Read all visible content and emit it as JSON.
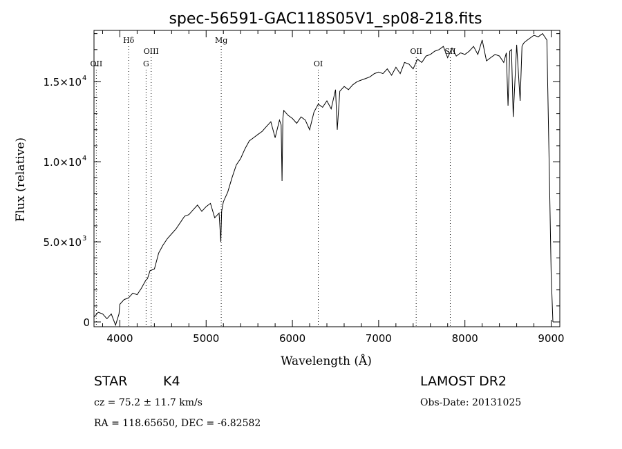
{
  "chart_data": {
    "type": "line",
    "title": "spec-56591-GAC118S05V1_sp08-218.fits",
    "xlabel": "Wavelength (Å)",
    "ylabel": "Flux (relative)",
    "xlim": [
      3700,
      9100
    ],
    "ylim": [
      -300,
      18200
    ],
    "xticks": [
      4000,
      5000,
      6000,
      7000,
      8000,
      9000
    ],
    "xtick_labels": [
      "4000",
      "5000",
      "6000",
      "7000",
      "8000",
      "9000"
    ],
    "yticks": [
      0,
      5000,
      10000,
      15000
    ],
    "ytick_labels": [
      {
        "mant": "0",
        "exp": ""
      },
      {
        "mant": "5.0×10",
        "exp": "3"
      },
      {
        "mant": "1.0×10",
        "exp": "4"
      },
      {
        "mant": "1.5×10",
        "exp": "4"
      }
    ],
    "grid": false,
    "line_markers": [
      {
        "label": "OII",
        "wavelength": 3727,
        "row": 3
      },
      {
        "label": "Hδ",
        "wavelength": 4102,
        "row": 1
      },
      {
        "label": "G",
        "wavelength": 4304,
        "row": 3
      },
      {
        "label": "OIII",
        "wavelength": 4363,
        "row": 2
      },
      {
        "label": "Mg",
        "wavelength": 5175,
        "row": 1
      },
      {
        "label": "OI",
        "wavelength": 6300,
        "row": 3
      },
      {
        "label": "OII",
        "wavelength": 7435,
        "row": 2
      },
      {
        "label": "SII",
        "wavelength": 7830,
        "row": 2
      }
    ],
    "series": [
      {
        "x": [
          3700,
          3750,
          3800,
          3850,
          3900,
          3950,
          3990,
          4000,
          4050,
          4100,
          4150,
          4200,
          4250,
          4300,
          4320,
          4350,
          4400,
          4450,
          4500,
          4550,
          4600,
          4650,
          4700,
          4750,
          4800,
          4850,
          4900,
          4950,
          5000,
          5050,
          5100,
          5150,
          5170,
          5180,
          5200,
          5250,
          5300,
          5350,
          5400,
          5450,
          5500,
          5550,
          5600,
          5650,
          5700,
          5750,
          5800,
          5850,
          5870,
          5880,
          5890,
          5900,
          5950,
          6000,
          6050,
          6100,
          6150,
          6200,
          6250,
          6300,
          6350,
          6400,
          6450,
          6500,
          6520,
          6550,
          6600,
          6650,
          6700,
          6750,
          6800,
          6850,
          6900,
          6950,
          7000,
          7050,
          7100,
          7150,
          7200,
          7250,
          7300,
          7350,
          7400,
          7450,
          7500,
          7550,
          7600,
          7650,
          7700,
          7750,
          7800,
          7850,
          7900,
          7950,
          8000,
          8050,
          8100,
          8150,
          8200,
          8250,
          8300,
          8350,
          8400,
          8450,
          8480,
          8500,
          8520,
          8540,
          8560,
          8600,
          8640,
          8662,
          8680,
          8700,
          8750,
          8800,
          8850,
          8900,
          8950,
          8980,
          9000,
          9020
        ],
        "y": [
          300,
          600,
          500,
          200,
          500,
          -200,
          500,
          1100,
          1400,
          1500,
          1800,
          1700,
          2100,
          2600,
          2700,
          3200,
          3300,
          4300,
          4800,
          5200,
          5500,
          5800,
          6200,
          6600,
          6700,
          7000,
          7300,
          6900,
          7200,
          7400,
          6500,
          6800,
          5000,
          6900,
          7500,
          8100,
          9000,
          9800,
          10200,
          10800,
          11300,
          11500,
          11700,
          11900,
          12200,
          12500,
          11500,
          12600,
          12300,
          8800,
          12700,
          13200,
          12900,
          12700,
          12400,
          12800,
          12600,
          12000,
          13100,
          13600,
          13400,
          13800,
          13300,
          14500,
          12000,
          14400,
          14700,
          14500,
          14800,
          15000,
          15100,
          15200,
          15300,
          15500,
          15600,
          15500,
          15800,
          15400,
          15900,
          15500,
          16200,
          16100,
          15800,
          16400,
          16200,
          16600,
          16700,
          16900,
          17000,
          17200,
          16500,
          17100,
          16600,
          16800,
          16700,
          16900,
          17200,
          16700,
          17600,
          16300,
          16500,
          16700,
          16600,
          16200,
          16800,
          13500,
          16900,
          17000,
          12800,
          17300,
          13800,
          17200,
          17400,
          17500,
          17700,
          17900,
          17800,
          18000,
          17600,
          9000,
          3000,
          0
        ]
      }
    ]
  },
  "info": {
    "object_type": "STAR",
    "subclass": "K4",
    "survey": "LAMOST DR2",
    "redshift": "cz = 75.2 ± 11.7 km/s",
    "obs_date": "Obs-Date: 20131025",
    "coords": "RA = 118.65650, DEC =  -6.82582"
  }
}
